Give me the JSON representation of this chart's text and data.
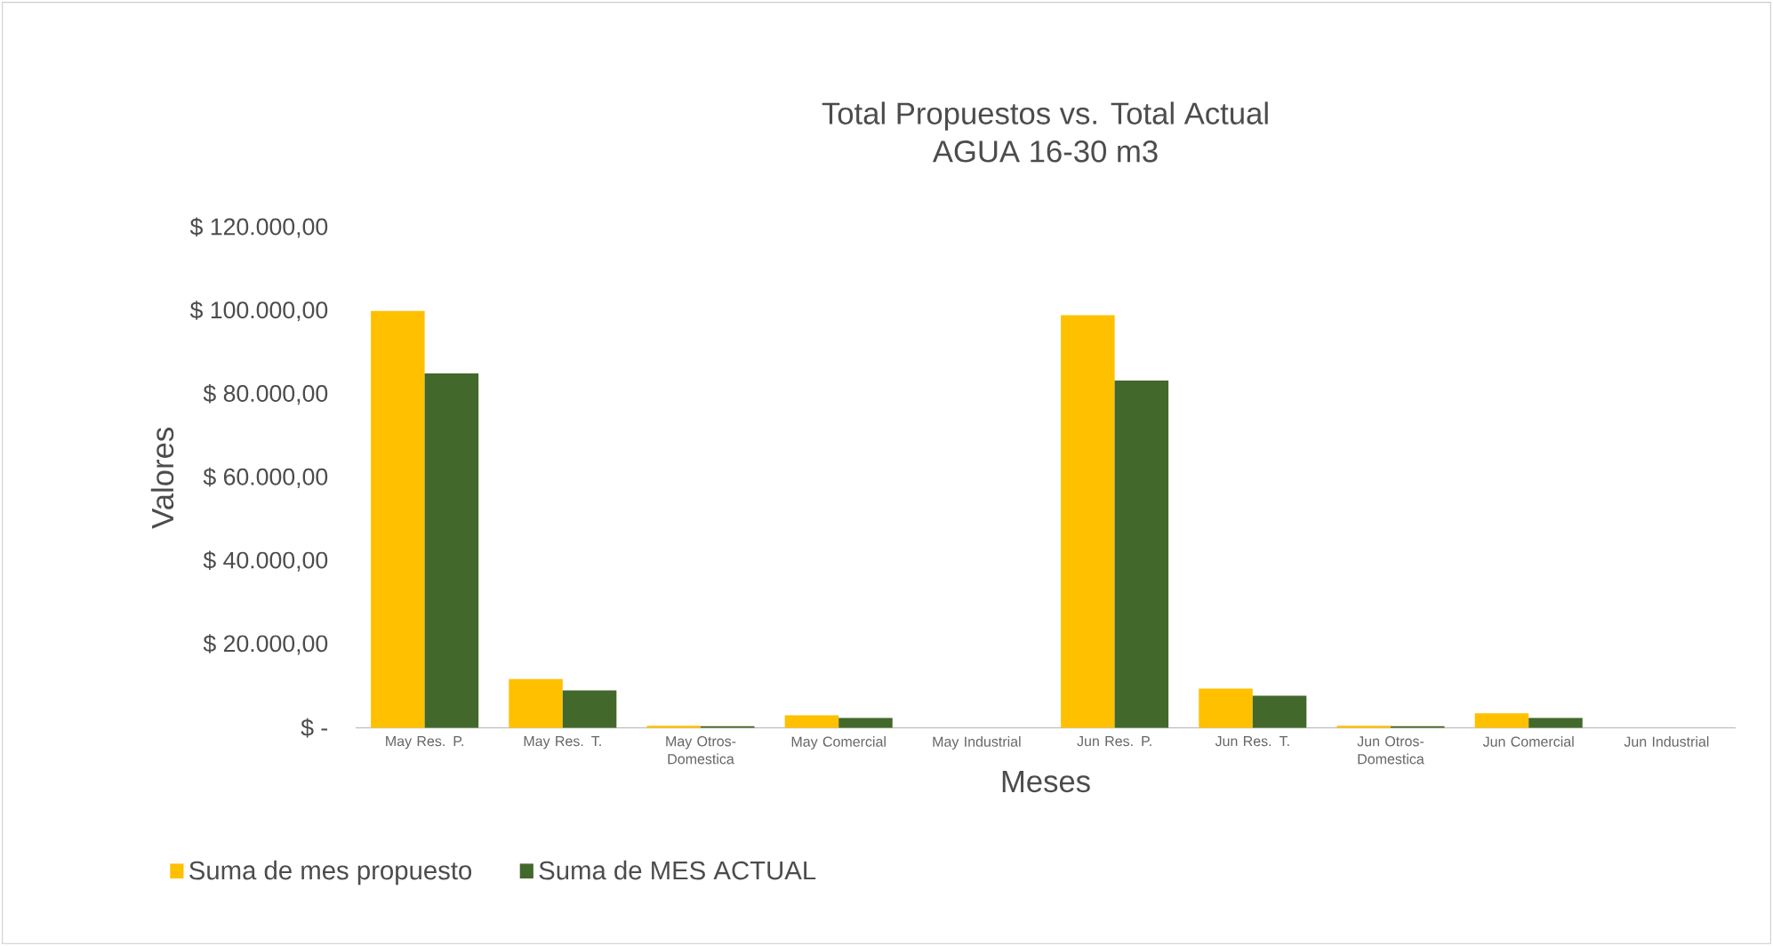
{
  "chart_data": {
    "type": "bar",
    "title": "Total Propuestos  vs. Total Actual",
    "subtitle": "AGUA 16-30  m3",
    "xlabel": "Meses",
    "ylabel": "Valores",
    "categories": [
      "May Res. P.",
      "May Res. T.",
      "May Otros-Domestica",
      "May Comercial",
      "May Industrial",
      "Jun Res. P.",
      "Jun Res. T.",
      "Jun Otros-Domestica",
      "Jun Comercial",
      "Jun Industrial"
    ],
    "series": [
      {
        "name": "Suma de mes propuesto",
        "color": "#ffc000",
        "values": [
          100000,
          11700,
          500,
          3000,
          0,
          99000,
          9400,
          500,
          3500,
          0
        ]
      },
      {
        "name": "Suma de MES ACTUAL",
        "color": "#43682b",
        "values": [
          85000,
          9000,
          400,
          2400,
          0,
          83300,
          7700,
          400,
          2400,
          0
        ]
      }
    ],
    "ylim": [
      0,
      120000
    ],
    "yticks": [
      {
        "value": 0,
        "label": "$ -"
      },
      {
        "value": 20000,
        "label": "$ 20.000,00"
      },
      {
        "value": 40000,
        "label": "$ 40.000,00"
      },
      {
        "value": 60000,
        "label": "$ 60.000,00"
      },
      {
        "value": 80000,
        "label": "$ 80.000,00"
      },
      {
        "value": 100000,
        "label": "$ 100.000,00"
      },
      {
        "value": 120000,
        "label": "$ 120.000,00"
      }
    ],
    "grid": false,
    "legend": "bottom left"
  }
}
